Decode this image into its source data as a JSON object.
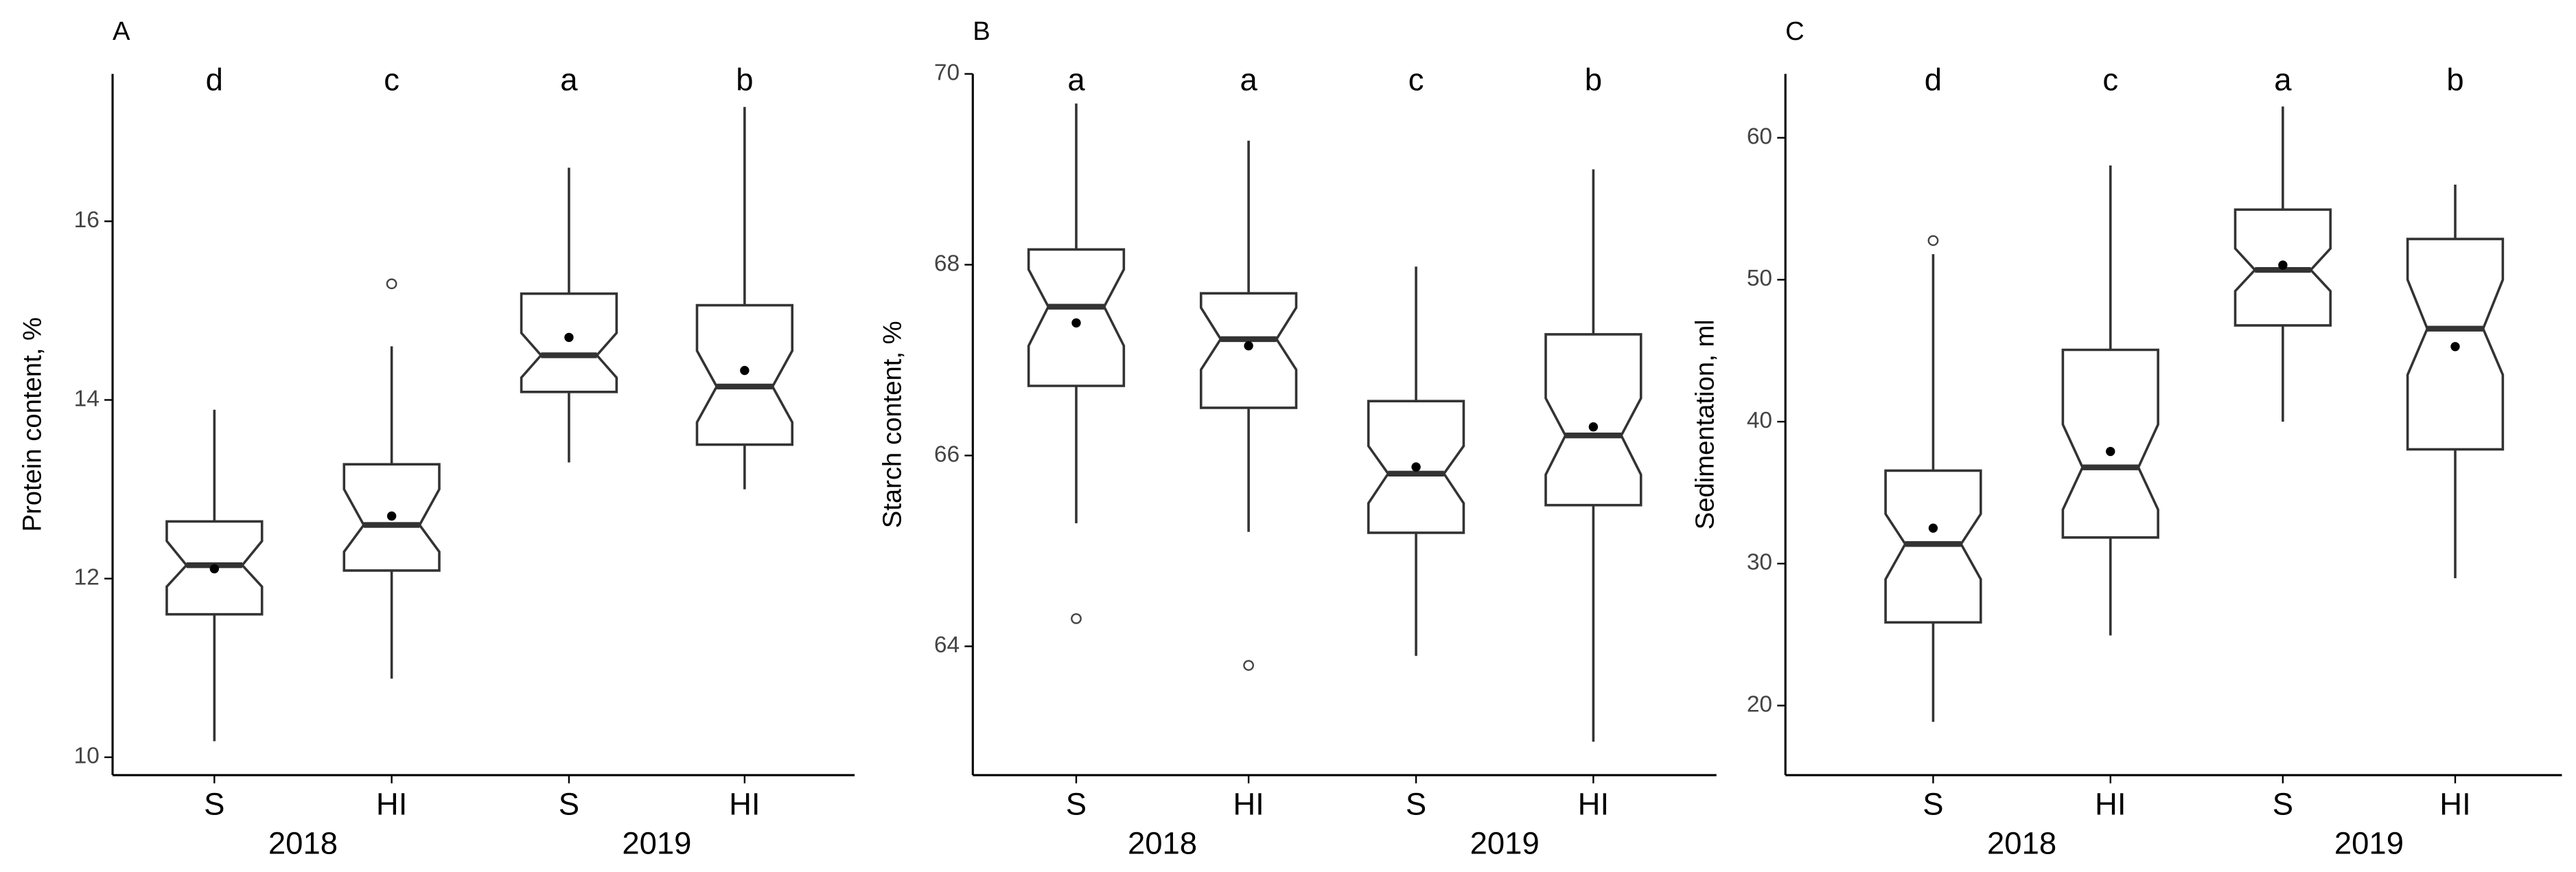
{
  "chart_data": [
    {
      "type": "box",
      "panel": "A",
      "y_label": "Protein content, %",
      "categories": [
        "S",
        "HI",
        "S",
        "HI"
      ],
      "groups": [
        "2018",
        "2019"
      ],
      "letters": [
        "d",
        "c",
        "a",
        "b"
      ],
      "ylim": [
        9.8,
        17.65
      ],
      "yticks": [
        10,
        12,
        14,
        16
      ],
      "boxes": [
        {
          "whisker_low": 10.18,
          "q1": 11.6,
          "notch_low": 11.91,
          "median": 12.15,
          "notch_high": 12.42,
          "q3": 12.64,
          "whisker_high": 13.89,
          "mean": 12.11,
          "outliers": []
        },
        {
          "whisker_low": 10.88,
          "q1": 12.09,
          "notch_low": 12.3,
          "median": 12.6,
          "notch_high": 13.0,
          "q3": 13.28,
          "whisker_high": 14.6,
          "mean": 12.7,
          "outliers": [
            15.3
          ]
        },
        {
          "whisker_low": 13.3,
          "q1": 14.09,
          "notch_low": 14.25,
          "median": 14.5,
          "notch_high": 14.75,
          "q3": 15.19,
          "whisker_high": 16.6,
          "mean": 14.7,
          "outliers": []
        },
        {
          "whisker_low": 13.0,
          "q1": 13.5,
          "notch_low": 13.75,
          "median": 14.15,
          "notch_high": 14.55,
          "q3": 15.06,
          "whisker_high": 17.28,
          "mean": 14.33,
          "outliers": []
        }
      ]
    },
    {
      "type": "box",
      "panel": "B",
      "y_label": "Starch content, %",
      "categories": [
        "S",
        "HI",
        "S",
        "HI"
      ],
      "groups": [
        "2018",
        "2019"
      ],
      "letters": [
        "a",
        "a",
        "c",
        "b"
      ],
      "ylim": [
        62.65,
        70
      ],
      "yticks": [
        64,
        66,
        68,
        70
      ],
      "boxes": [
        {
          "whisker_low": 65.29,
          "q1": 66.73,
          "notch_low": 67.15,
          "median": 67.56,
          "notch_high": 67.95,
          "q3": 68.16,
          "whisker_high": 69.69,
          "mean": 67.39,
          "outliers": [
            64.29
          ]
        },
        {
          "whisker_low": 65.2,
          "q1": 66.5,
          "notch_low": 66.9,
          "median": 67.22,
          "notch_high": 67.55,
          "q3": 67.7,
          "whisker_high": 69.3,
          "mean": 67.15,
          "outliers": [
            63.8
          ]
        },
        {
          "whisker_low": 63.9,
          "q1": 65.19,
          "notch_low": 65.5,
          "median": 65.81,
          "notch_high": 66.1,
          "q3": 66.57,
          "whisker_high": 67.98,
          "mean": 65.88,
          "outliers": []
        },
        {
          "whisker_low": 63.0,
          "q1": 65.48,
          "notch_low": 65.8,
          "median": 66.21,
          "notch_high": 66.6,
          "q3": 67.27,
          "whisker_high": 69.0,
          "mean": 66.3,
          "outliers": []
        }
      ]
    },
    {
      "type": "box",
      "panel": "C",
      "y_label": "Sedimentation, ml",
      "categories": [
        "S",
        "HI",
        "S",
        "HI"
      ],
      "groups": [
        "2018",
        "2019"
      ],
      "letters": [
        "d",
        "c",
        "a",
        "b"
      ],
      "ylim": [
        15.1,
        64.5
      ],
      "yticks": [
        20,
        30,
        40,
        50,
        60
      ],
      "boxes": [
        {
          "whisker_low": 18.85,
          "q1": 25.86,
          "notch_low": 28.9,
          "median": 31.38,
          "notch_high": 33.5,
          "q3": 36.55,
          "whisker_high": 51.8,
          "mean": 32.5,
          "outliers": [
            52.76
          ]
        },
        {
          "whisker_low": 24.94,
          "q1": 31.84,
          "notch_low": 33.8,
          "median": 36.78,
          "notch_high": 39.8,
          "q3": 45.06,
          "whisker_high": 58.05,
          "mean": 37.9,
          "outliers": []
        },
        {
          "whisker_low": 40.0,
          "q1": 46.78,
          "notch_low": 49.2,
          "median": 50.69,
          "notch_high": 52.2,
          "q3": 54.94,
          "whisker_high": 62.2,
          "mean": 51.03,
          "outliers": []
        },
        {
          "whisker_low": 28.97,
          "q1": 38.05,
          "notch_low": 43.3,
          "median": 46.55,
          "notch_high": 50.0,
          "q3": 52.87,
          "whisker_high": 56.7,
          "mean": 45.29,
          "outliers": []
        }
      ]
    }
  ]
}
